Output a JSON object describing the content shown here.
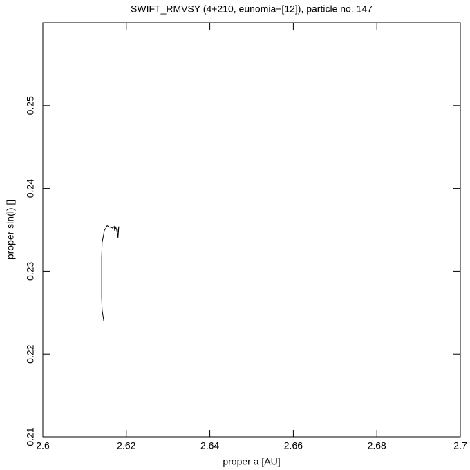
{
  "chart_data": {
    "type": "line",
    "title": "SWIFT_RMVSY (4+210, eunomia−[12]), particle no. 147",
    "x_label": "proper a [AU]",
    "y_label": "proper sin(i) []",
    "xlim": [
      2.6,
      2.7
    ],
    "ylim": [
      0.21,
      0.26
    ],
    "xticks": [
      2.6,
      2.62,
      2.64,
      2.66,
      2.68,
      2.7
    ],
    "yticks": [
      0.21,
      0.22,
      0.23,
      0.24,
      0.25
    ],
    "grid": false,
    "series": [
      {
        "color": "#000000",
        "x": [
          2.6146,
          2.6142,
          2.6141,
          2.6141,
          2.6141,
          2.6142,
          2.6146,
          2.6147,
          2.6151,
          2.6154,
          2.6157,
          2.6161,
          2.6164,
          2.6167,
          2.6171,
          2.6172,
          2.6175,
          2.6179,
          2.618,
          2.6182,
          2.618
        ],
        "values": [
          0.224,
          0.2253,
          0.2268,
          0.2293,
          0.2317,
          0.2335,
          0.2345,
          0.2349,
          0.2352,
          0.2355,
          0.2354,
          0.2353,
          0.2353,
          0.2352,
          0.2354,
          0.2349,
          0.2353,
          0.2346,
          0.234,
          0.2354,
          0.2348
        ]
      }
    ]
  }
}
